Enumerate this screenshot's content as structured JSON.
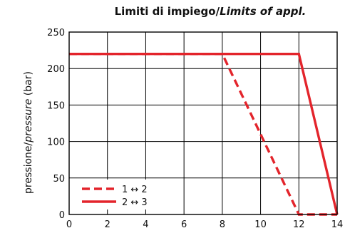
{
  "chart_data": {
    "type": "line",
    "title_main": "Limiti di impiego/",
    "title_italic": "Limits of appl.",
    "ylabel_main": "pressione/",
    "ylabel_italic": "pressure",
    "ylabel_unit": " (bar)",
    "xlim": [
      0,
      14
    ],
    "ylim": [
      0,
      250
    ],
    "x_ticks": [
      0,
      2,
      4,
      6,
      8,
      10,
      12,
      14
    ],
    "y_ticks": [
      0,
      50,
      100,
      150,
      200,
      250
    ],
    "grid": true,
    "legend_position": "bottom-left",
    "series": [
      {
        "name": "1 ↔ 2",
        "style": "dashed",
        "color": "#e3242b",
        "points": [
          [
            0,
            220
          ],
          [
            8,
            220
          ],
          [
            12,
            0
          ],
          [
            14,
            0
          ]
        ]
      },
      {
        "name": "2 ↔ 3",
        "style": "solid",
        "color": "#e3242b",
        "points": [
          [
            0,
            220
          ],
          [
            12,
            220
          ],
          [
            14,
            0
          ]
        ]
      }
    ]
  }
}
